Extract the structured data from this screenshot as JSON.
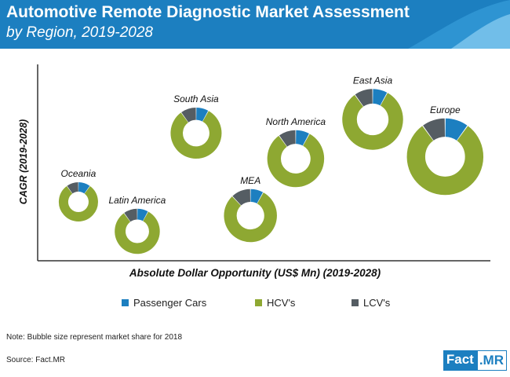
{
  "header": {
    "title": "Automotive Remote Diagnostic Market Assessment",
    "subtitle": "by Region, 2019-2028"
  },
  "note": "Note: Bubble size represent market share for 2018",
  "source": "Source: Fact.MR",
  "logo": {
    "part1": "Fact",
    "part2": ".MR"
  },
  "colors": {
    "header": "#1c7fc0",
    "passenger": "#1c7fc0",
    "hcv": "#8ea832",
    "lcv": "#555d63"
  },
  "chart_data": {
    "type": "bubble-donut",
    "xlabel": "Absolute Dollar Opportunity (US$ Mn) (2019-2028)",
    "ylabel": "CAGR (2019-2028)",
    "x_range": [
      0,
      10
    ],
    "y_range": [
      0,
      10
    ],
    "axis_ticks_shown": false,
    "legend_position": "bottom",
    "legend": [
      "Passenger Cars",
      "HCV's",
      "LCV's"
    ],
    "categories": [
      "Passenger Cars",
      "HCV's",
      "LCV's"
    ],
    "series": [
      {
        "name": "Oceania",
        "x": 0.9,
        "y": 3.0,
        "size": 1.0,
        "shares": [
          0.1,
          0.8,
          0.1
        ]
      },
      {
        "name": "Latin America",
        "x": 2.2,
        "y": 1.5,
        "size": 1.15,
        "shares": [
          0.08,
          0.82,
          0.1
        ]
      },
      {
        "name": "South Asia",
        "x": 3.5,
        "y": 6.5,
        "size": 1.3,
        "shares": [
          0.08,
          0.82,
          0.1
        ]
      },
      {
        "name": "MEA",
        "x": 4.7,
        "y": 2.3,
        "size": 1.35,
        "shares": [
          0.08,
          0.8,
          0.12
        ]
      },
      {
        "name": "North America",
        "x": 5.7,
        "y": 5.2,
        "size": 1.45,
        "shares": [
          0.08,
          0.82,
          0.1
        ]
      },
      {
        "name": "East Asia",
        "x": 7.4,
        "y": 7.2,
        "size": 1.55,
        "shares": [
          0.08,
          0.82,
          0.1
        ]
      },
      {
        "name": "Europe",
        "x": 9.0,
        "y": 5.3,
        "size": 1.95,
        "shares": [
          0.1,
          0.8,
          0.1
        ]
      }
    ]
  }
}
